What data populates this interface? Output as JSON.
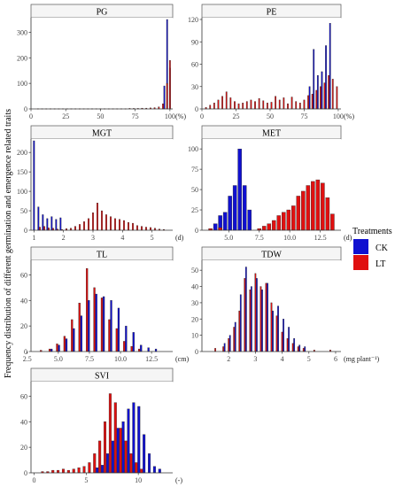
{
  "figure": {
    "ylabel": "Frequency distribution of different germination and emergence related traits",
    "legend": {
      "title": "Treatments",
      "items": [
        {
          "label": "CK",
          "color": "#1010d0"
        },
        {
          "label": "LT",
          "color": "#e01010"
        }
      ]
    }
  },
  "chart_data": [
    {
      "type": "bar",
      "title": "PG",
      "unit": "(%)",
      "xlim": [
        0,
        102
      ],
      "ylim": [
        0,
        350
      ],
      "xticks": [
        0,
        25,
        50,
        75,
        100
      ],
      "yticks": [
        0,
        100,
        200,
        300
      ],
      "series": [
        {
          "name": "CK",
          "x": [
            96,
            98,
            100
          ],
          "values": [
            90,
            350,
            160
          ]
        },
        {
          "name": "LT",
          "x": [
            5,
            8,
            11,
            14,
            17,
            20,
            23,
            26,
            29,
            32,
            35,
            38,
            41,
            44,
            47,
            50,
            53,
            56,
            59,
            62,
            65,
            68,
            71,
            74,
            77,
            80,
            83,
            86,
            89,
            92,
            95,
            98,
            100
          ],
          "values": [
            1,
            1,
            1,
            1,
            1,
            1,
            1,
            1,
            1,
            1,
            1,
            1,
            1,
            1,
            1,
            1,
            1,
            1,
            1,
            1,
            1,
            1,
            2,
            2,
            2,
            3,
            3,
            4,
            5,
            8,
            20,
            100,
            190
          ]
        }
      ]
    },
    {
      "type": "bar",
      "title": "PE",
      "unit": "(%)",
      "xlim": [
        0,
        102
      ],
      "ylim": [
        0,
        120
      ],
      "xticks": [
        0,
        25,
        50,
        75,
        100
      ],
      "yticks": [
        0,
        30,
        60,
        90,
        120
      ],
      "series": [
        {
          "name": "CK",
          "x": [
            79,
            82,
            85,
            88,
            91,
            94
          ],
          "values": [
            30,
            80,
            45,
            50,
            85,
            115
          ]
        },
        {
          "name": "LT",
          "x": [
            3,
            6,
            9,
            12,
            15,
            18,
            21,
            24,
            27,
            30,
            33,
            36,
            39,
            42,
            45,
            48,
            51,
            54,
            57,
            60,
            63,
            66,
            69,
            72,
            75,
            78,
            81,
            84,
            87,
            90,
            93,
            96,
            99
          ],
          "values": [
            2,
            5,
            8,
            12,
            17,
            23,
            15,
            10,
            7,
            8,
            10,
            12,
            10,
            14,
            11,
            8,
            9,
            17,
            12,
            15,
            7,
            16,
            10,
            8,
            12,
            18,
            20,
            25,
            30,
            35,
            45,
            40,
            30
          ]
        }
      ]
    },
    {
      "type": "bar",
      "title": "MGT",
      "unit": "(d)",
      "xlim": [
        0.9,
        5.7
      ],
      "ylim": [
        0,
        230
      ],
      "xticks": [
        1,
        2,
        3,
        4,
        5
      ],
      "yticks": [
        0,
        50,
        100,
        150,
        200
      ],
      "series": [
        {
          "name": "CK",
          "x": [
            1.0,
            1.15,
            1.3,
            1.45,
            1.6,
            1.75,
            1.9
          ],
          "values": [
            230,
            60,
            40,
            30,
            35,
            28,
            32
          ]
        },
        {
          "name": "LT",
          "x": [
            1.2,
            1.35,
            1.5,
            1.65,
            1.8,
            1.95,
            2.1,
            2.25,
            2.4,
            2.55,
            2.7,
            2.85,
            3.0,
            3.15,
            3.3,
            3.45,
            3.6,
            3.75,
            3.9,
            4.05,
            4.2,
            4.35,
            4.5,
            4.65,
            4.8,
            4.95,
            5.1,
            5.25,
            5.4
          ],
          "values": [
            8,
            10,
            6,
            5,
            3,
            2,
            4,
            5,
            10,
            15,
            22,
            30,
            45,
            70,
            50,
            40,
            35,
            30,
            28,
            25,
            20,
            18,
            12,
            10,
            8,
            7,
            5,
            3,
            2
          ]
        }
      ]
    },
    {
      "type": "bar",
      "title": "MET",
      "unit": "(d)",
      "xlim": [
        2.8,
        14.2
      ],
      "ylim": [
        0,
        110
      ],
      "xticks": [
        5.0,
        7.5,
        10.0,
        12.5
      ],
      "yticks": [
        0,
        25,
        50,
        75,
        100
      ],
      "series": [
        {
          "name": "CK",
          "x": [
            3.9,
            4.3,
            4.7,
            5.1,
            5.5,
            5.9,
            6.3,
            6.7
          ],
          "values": [
            8,
            18,
            22,
            42,
            55,
            100,
            55,
            25
          ]
        },
        {
          "name": "LT",
          "x": [
            3.5,
            4.3,
            7.5,
            7.9,
            8.3,
            8.7,
            9.1,
            9.5,
            9.9,
            10.3,
            10.7,
            11.1,
            11.5,
            11.9,
            12.3,
            12.7,
            13.1,
            13.5
          ],
          "values": [
            2,
            3,
            2,
            5,
            8,
            12,
            18,
            22,
            25,
            30,
            42,
            48,
            55,
            60,
            62,
            58,
            40,
            20
          ]
        }
      ]
    },
    {
      "type": "bar",
      "title": "TL",
      "unit": "(cm)",
      "xlim": [
        2.8,
        14.2
      ],
      "ylim": [
        0,
        70
      ],
      "xticks": [
        2.5,
        5.0,
        7.5,
        10.0,
        12.5
      ],
      "yticks": [
        0,
        20,
        40,
        60
      ],
      "series": [
        {
          "name": "CK",
          "x": [
            4.45,
            5.05,
            5.65,
            6.25,
            6.85,
            7.45,
            8.05,
            8.65,
            9.25,
            9.85,
            10.45,
            11.05,
            11.65,
            12.25,
            12.85
          ],
          "values": [
            2,
            5,
            10,
            18,
            28,
            40,
            45,
            43,
            40,
            34,
            20,
            15,
            5,
            3,
            2
          ]
        },
        {
          "name": "LT",
          "x": [
            3.6,
            4.3,
            4.9,
            5.5,
            6.1,
            6.7,
            7.3,
            7.9,
            8.5,
            9.1,
            9.7,
            10.3,
            10.9,
            11.5
          ],
          "values": [
            1,
            2,
            6,
            12,
            25,
            38,
            65,
            50,
            42,
            25,
            18,
            8,
            4,
            2
          ]
        }
      ]
    },
    {
      "type": "bar",
      "title": "TDW",
      "unit": "(mg plant⁻¹)",
      "xlim": [
        1.0,
        6.2
      ],
      "ylim": [
        0,
        55
      ],
      "xticks": [
        2,
        3,
        4,
        5,
        6
      ],
      "yticks": [
        0,
        10,
        20,
        30,
        40,
        50
      ],
      "series": [
        {
          "name": "CK",
          "x": [
            1.85,
            2.05,
            2.25,
            2.45,
            2.65,
            2.85,
            3.05,
            3.25,
            3.45,
            3.65,
            3.85,
            4.05,
            4.25,
            4.45,
            4.65,
            4.85
          ],
          "values": [
            5,
            10,
            18,
            35,
            52,
            40,
            45,
            38,
            42,
            25,
            28,
            20,
            15,
            8,
            4,
            3
          ]
        },
        {
          "name": "LT",
          "x": [
            1.5,
            1.8,
            2.0,
            2.2,
            2.4,
            2.6,
            2.8,
            3.0,
            3.2,
            3.4,
            3.6,
            3.8,
            4.0,
            4.2,
            4.4,
            4.6,
            4.8,
            5.2,
            5.8
          ],
          "values": [
            2,
            3,
            8,
            15,
            25,
            45,
            38,
            48,
            40,
            42,
            30,
            22,
            12,
            8,
            5,
            3,
            2,
            1,
            1
          ]
        }
      ]
    },
    {
      "type": "bar",
      "title": "SVI",
      "unit": "(-)",
      "xlim": [
        -0.3,
        13.3
      ],
      "ylim": [
        0,
        70
      ],
      "xticks": [
        0,
        5,
        10
      ],
      "yticks": [
        0,
        20,
        40,
        60
      ],
      "series": [
        {
          "name": "CK",
          "x": [
            6.05,
            6.55,
            7.05,
            7.55,
            8.05,
            8.55,
            9.05,
            9.55,
            10.05,
            10.55,
            11.05,
            11.55,
            12.05
          ],
          "values": [
            4,
            6,
            15,
            25,
            35,
            40,
            50,
            55,
            52,
            30,
            15,
            5,
            3
          ]
        },
        {
          "name": "LT",
          "x": [
            0.8,
            1.3,
            1.8,
            2.3,
            2.8,
            3.3,
            3.8,
            4.3,
            4.8,
            5.3,
            5.8,
            6.3,
            6.8,
            7.3,
            7.8,
            8.3,
            8.8,
            9.3,
            9.8,
            10.3
          ],
          "values": [
            1,
            1,
            2,
            2,
            3,
            2,
            3,
            4,
            5,
            8,
            15,
            25,
            40,
            62,
            55,
            35,
            25,
            15,
            8,
            3
          ]
        }
      ]
    }
  ]
}
